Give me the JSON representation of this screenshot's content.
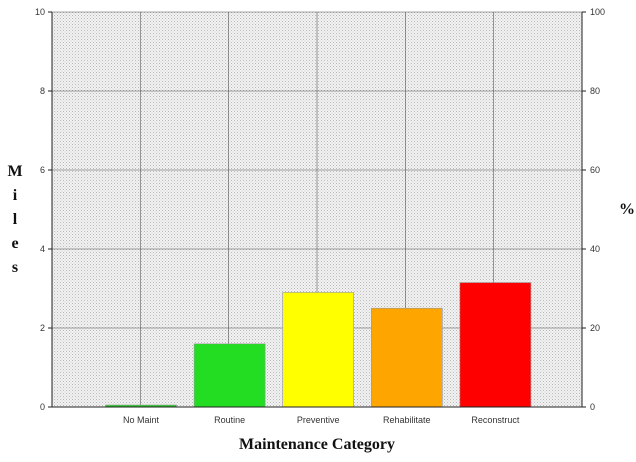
{
  "chart_data": {
    "type": "bar",
    "categories": [
      "No Maint",
      "Routine",
      "Preventive",
      "Rehabilitate",
      "Reconstruct"
    ],
    "values": [
      0.05,
      1.6,
      2.9,
      2.5,
      3.15
    ],
    "colors": [
      "#22cc22",
      "#22dd22",
      "#ffff00",
      "#ffa500",
      "#ff0000"
    ],
    "title": "",
    "xlabel": "Maintenance Category",
    "ylabel": "Miles",
    "ylabel_letters": [
      "M",
      "i",
      "l",
      "e",
      "s"
    ],
    "ylim": [
      0,
      10
    ],
    "y_ticks": [
      0,
      2,
      4,
      6,
      8,
      10
    ],
    "y2label": "%",
    "y2lim": [
      0,
      100
    ],
    "y2_ticks": [
      0,
      20,
      40,
      60,
      80,
      100
    ],
    "grid": true,
    "plot_background": "#e4e4e4"
  }
}
